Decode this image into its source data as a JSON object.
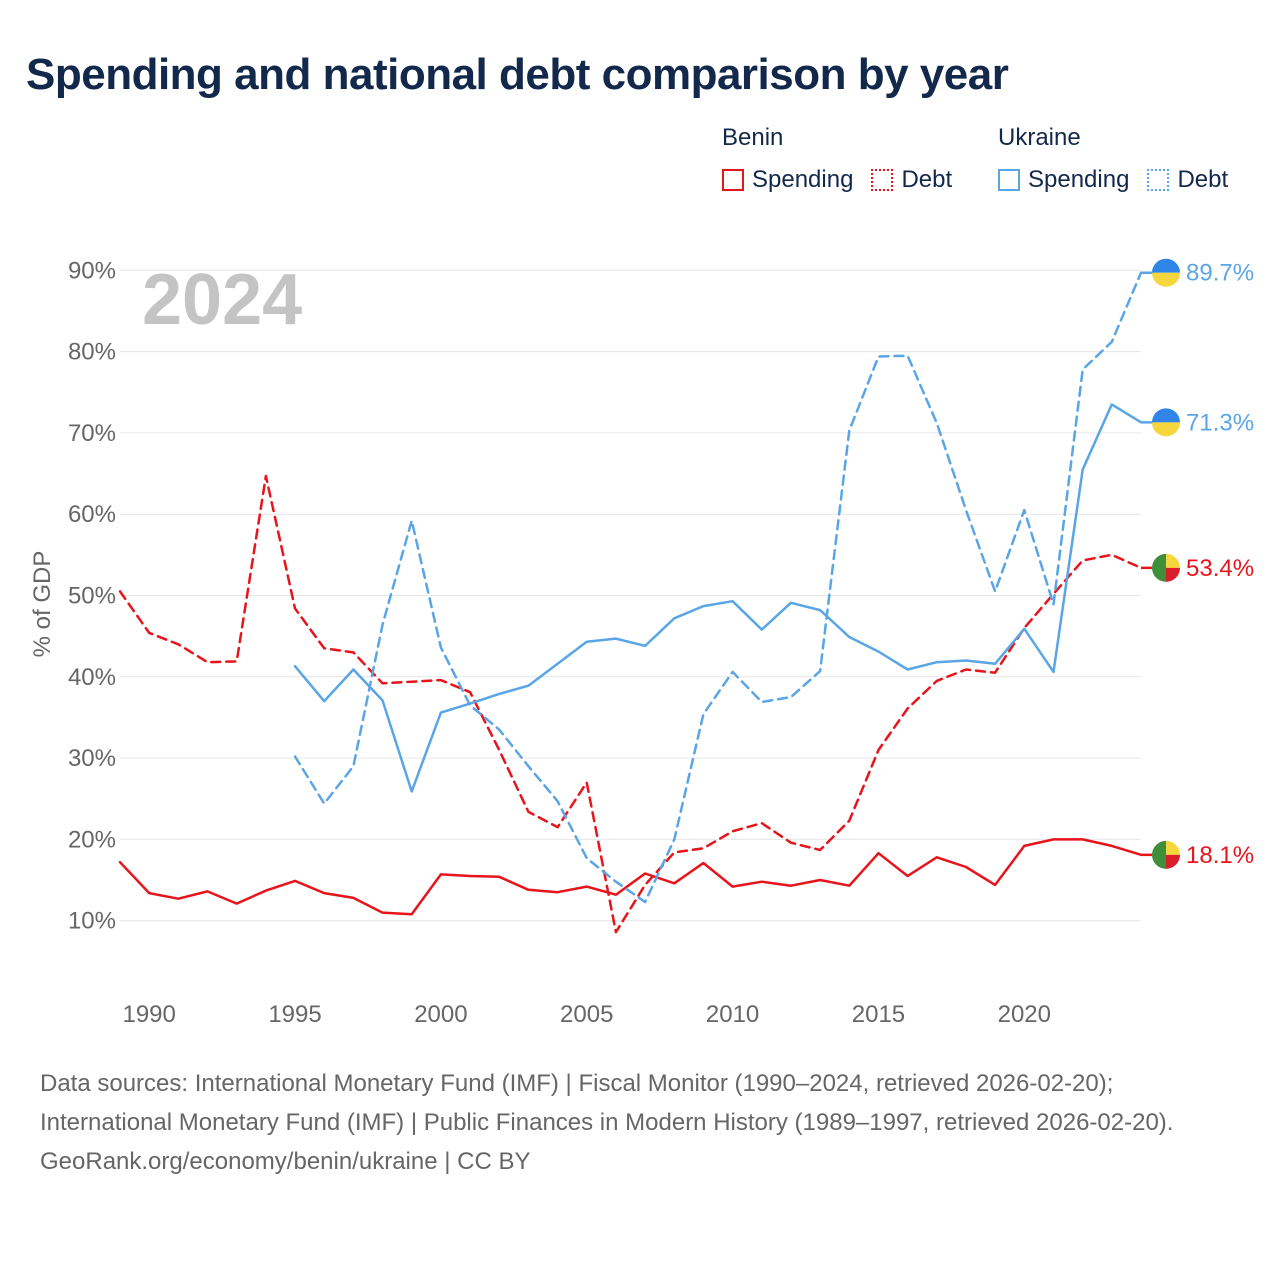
{
  "title": "Spending and national debt comparison by year",
  "legend": {
    "groups": [
      {
        "name": "Benin",
        "color": "#e8141c",
        "items": [
          {
            "label": "Spending",
            "style": "solid"
          },
          {
            "label": "Debt",
            "style": "dotted"
          }
        ]
      },
      {
        "name": "Ukraine",
        "color": "#5aa5e6",
        "items": [
          {
            "label": "Spending",
            "style": "solid"
          },
          {
            "label": "Debt",
            "style": "dotted"
          }
        ]
      }
    ]
  },
  "chart_data": {
    "type": "line",
    "title": "Spending and national debt comparison by year",
    "year_label": "2024",
    "ylabel": "% of GDP",
    "xlabel": "",
    "xlim": [
      1989,
      2024
    ],
    "ylim": [
      0,
      90
    ],
    "x_ticks": [
      1990,
      1995,
      2000,
      2005,
      2010,
      2015,
      2020
    ],
    "y_ticks": [
      {
        "value": 10,
        "label": "10%"
      },
      {
        "value": 20,
        "label": "20%"
      },
      {
        "value": 30,
        "label": "30%"
      },
      {
        "value": 40,
        "label": "40%"
      },
      {
        "value": 50,
        "label": "50%"
      },
      {
        "value": 60,
        "label": "60%"
      },
      {
        "value": 70,
        "label": "70%"
      },
      {
        "value": 80,
        "label": "80%"
      },
      {
        "value": 90,
        "label": "90%"
      }
    ],
    "series": [
      {
        "name": "Benin Spending",
        "country": "Benin",
        "metric": "Spending",
        "color": "#e8141c",
        "dashed": false,
        "end_label": "18.1%",
        "flag": "benin",
        "x": [
          1989,
          1990,
          1991,
          1992,
          1993,
          1994,
          1995,
          1996,
          1997,
          1998,
          1999,
          2000,
          2001,
          2002,
          2003,
          2004,
          2005,
          2006,
          2007,
          2008,
          2009,
          2010,
          2011,
          2012,
          2013,
          2014,
          2015,
          2016,
          2017,
          2018,
          2019,
          2020,
          2021,
          2022,
          2023,
          2024
        ],
        "y": [
          17.2,
          13.4,
          12.7,
          13.6,
          12.1,
          13.7,
          14.9,
          13.4,
          12.8,
          11.0,
          10.8,
          15.7,
          15.5,
          15.4,
          13.8,
          13.5,
          14.2,
          13.2,
          15.8,
          14.6,
          17.1,
          14.2,
          14.8,
          14.3,
          15.0,
          14.3,
          18.3,
          15.5,
          17.8,
          16.6,
          14.4,
          19.2,
          20.0,
          20.0,
          19.2,
          18.1
        ]
      },
      {
        "name": "Benin Debt",
        "country": "Benin",
        "metric": "Debt",
        "color": "#e8141c",
        "dashed": true,
        "end_label": "53.4%",
        "flag": "benin",
        "x": [
          1989,
          1990,
          1991,
          1992,
          1993,
          1994,
          1995,
          1996,
          1997,
          1998,
          1999,
          2000,
          2001,
          2002,
          2003,
          2004,
          2005,
          2006,
          2007,
          2008,
          2009,
          2010,
          2011,
          2012,
          2013,
          2014,
          2015,
          2016,
          2017,
          2018,
          2019,
          2020,
          2021,
          2022,
          2023,
          2024
        ],
        "y": [
          50.5,
          45.4,
          44.0,
          41.8,
          41.9,
          64.7,
          48.4,
          43.5,
          43.0,
          39.2,
          39.4,
          39.6,
          38.1,
          31.0,
          23.4,
          21.5,
          27.0,
          8.6,
          14.4,
          18.4,
          18.9,
          21.0,
          22.0,
          19.6,
          18.7,
          22.3,
          31.0,
          36.1,
          39.5,
          40.9,
          40.5,
          46.0,
          50.2,
          54.3,
          55.0,
          53.4
        ]
      },
      {
        "name": "Ukraine Spending",
        "country": "Ukraine",
        "metric": "Spending",
        "color": "#5aa5e6",
        "dashed": false,
        "end_label": "71.3%",
        "flag": "ukraine",
        "x": [
          1995,
          1996,
          1997,
          1998,
          1999,
          2000,
          2001,
          2002,
          2003,
          2004,
          2005,
          2006,
          2007,
          2008,
          2009,
          2010,
          2011,
          2012,
          2013,
          2014,
          2015,
          2016,
          2017,
          2018,
          2019,
          2020,
          2021,
          2022,
          2023,
          2024
        ],
        "y": [
          41.3,
          37.0,
          40.9,
          37.1,
          25.9,
          35.6,
          36.7,
          37.9,
          38.9,
          41.6,
          44.3,
          44.7,
          43.8,
          47.2,
          48.7,
          49.3,
          45.8,
          49.1,
          48.2,
          44.9,
          43.1,
          40.9,
          41.8,
          42.0,
          41.6,
          45.9,
          40.6,
          65.5,
          73.5,
          71.3
        ]
      },
      {
        "name": "Ukraine Debt",
        "country": "Ukraine",
        "metric": "Debt",
        "color": "#5aa5e6",
        "dashed": true,
        "end_label": "89.7%",
        "flag": "ukraine",
        "x": [
          1995,
          1996,
          1997,
          1998,
          1999,
          2000,
          2001,
          2002,
          2003,
          2004,
          2005,
          2006,
          2007,
          2008,
          2009,
          2010,
          2011,
          2012,
          2013,
          2014,
          2015,
          2016,
          2017,
          2018,
          2019,
          2020,
          2021,
          2022,
          2023,
          2024
        ],
        "y": [
          30.2,
          24.4,
          29.0,
          46.4,
          59.2,
          43.6,
          36.5,
          33.5,
          29.0,
          24.7,
          17.7,
          14.8,
          12.3,
          20.0,
          35.4,
          40.6,
          36.9,
          37.5,
          40.7,
          70.3,
          79.4,
          79.5,
          71.2,
          60.5,
          50.5,
          60.5,
          48.9,
          77.8,
          81.2,
          89.7
        ]
      }
    ]
  },
  "footer": {
    "sources": "Data sources: International Monetary Fund (IMF) | Fiscal Monitor (1990–2024, retrieved 2026-02-20); International Monetary Fund (IMF) | Public Finances in Modern History (1989–1997, retrieved 2026-02-20).",
    "attribution": "GeoRank.org/economy/benin/ukraine | CC BY"
  }
}
